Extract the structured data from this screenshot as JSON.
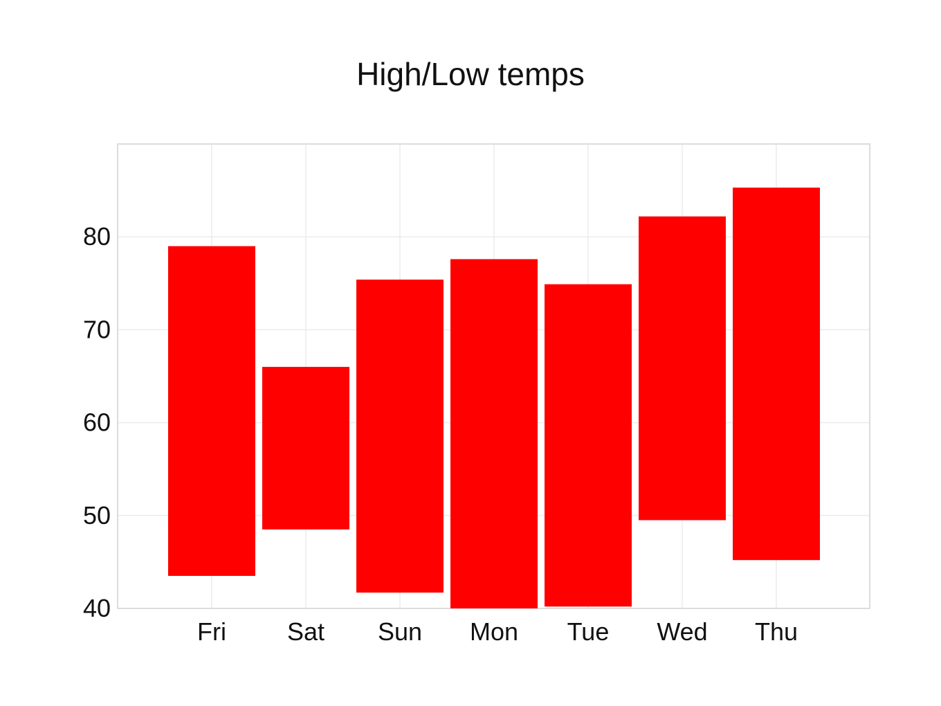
{
  "chart_data": {
    "type": "bar",
    "subtype": "floating-range",
    "title": "High/Low temps",
    "xlabel": "",
    "ylabel": "",
    "categories": [
      "Fri",
      "Sat",
      "Sun",
      "Mon",
      "Tue",
      "Wed",
      "Thu"
    ],
    "series": [
      {
        "low": [
          43.5,
          48.5,
          41.7,
          40.0,
          40.2,
          49.5,
          45.2
        ],
        "high": [
          79.0,
          66.0,
          75.4,
          77.6,
          74.9,
          82.2,
          85.3
        ]
      }
    ],
    "ylim": [
      40,
      90
    ],
    "yticks": [
      40,
      50,
      60,
      70,
      80
    ],
    "grid": true,
    "legend": "none",
    "bar_color": "#ff0000",
    "grid_color": "#ececec",
    "frame_color": "#dcdcdc"
  }
}
